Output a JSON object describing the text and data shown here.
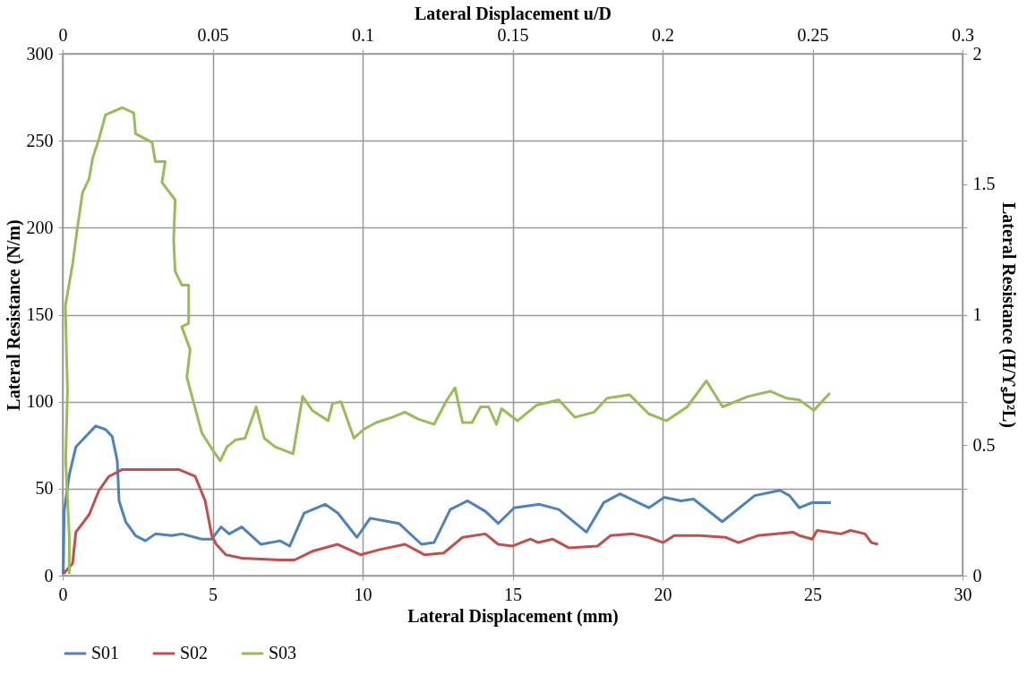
{
  "chart_data": {
    "type": "line",
    "xlabel": "Lateral Displacement (mm)",
    "ylabel": "Lateral Resistance (N/m)",
    "y2label": "Lateral Resistance (H/ϒₛD²L)",
    "x2label": "Lateral Displacement u/D",
    "xlim": [
      0,
      30
    ],
    "xticks": [
      0,
      5,
      10,
      15,
      20,
      25,
      30
    ],
    "ylim": [
      0,
      300
    ],
    "yticks": [
      0,
      50,
      100,
      150,
      200,
      250,
      300
    ],
    "x2lim": [
      0,
      0.3
    ],
    "x2ticks": [
      0,
      0.05,
      0.1,
      0.15,
      0.2,
      0.25,
      0.3
    ],
    "y2lim": [
      0,
      2
    ],
    "y2ticks": [
      0,
      {
        "value": 0.333,
        "label": null
      },
      0.5,
      {
        "value": 0.667,
        "label": null
      },
      1,
      {
        "value": 1.333,
        "label": null
      },
      1.5,
      {
        "value": 1.667,
        "label": null
      },
      2
    ],
    "grid": true,
    "legend": "bottom",
    "line_style": "solid",
    "marker": "none",
    "series": [
      {
        "name": "S01",
        "color": "#4f81bd",
        "x": [
          0.02,
          0.05,
          0.22,
          0.44,
          0.77,
          1.1,
          1.43,
          1.65,
          1.82,
          1.88,
          2.1,
          2.43,
          2.76,
          3.09,
          3.64,
          3.97,
          4.64,
          4.97,
          5.28,
          5.55,
          5.97,
          6.61,
          7.25,
          7.57,
          8.05,
          8.75,
          9.17,
          9.81,
          10.25,
          10.89,
          11.21,
          11.96,
          12.38,
          12.92,
          13.5,
          14.09,
          14.52,
          15.05,
          15.9,
          16.54,
          17.46,
          18.04,
          18.58,
          19.54,
          20.06,
          20.61,
          21.03,
          21.99,
          23.07,
          23.91,
          24.23,
          24.56,
          24.99,
          25.61
        ],
        "values": [
          1,
          37,
          58,
          74,
          80,
          86,
          84,
          80,
          66,
          43,
          31,
          23,
          20,
          24,
          23,
          24,
          21,
          21,
          28,
          24,
          28,
          18,
          20,
          17,
          36,
          41,
          36,
          22,
          33,
          31,
          30,
          18,
          19,
          38,
          43,
          37,
          30,
          39,
          41,
          38,
          25,
          42,
          47,
          39,
          45,
          43,
          44,
          31,
          46,
          49,
          46,
          39,
          42,
          42
        ]
      },
      {
        "name": "S02",
        "color": "#c0504d",
        "x": [
          0.02,
          0.33,
          0.44,
          0.88,
          1.21,
          1.54,
          1.99,
          3.09,
          3.87,
          4.42,
          4.75,
          4.97,
          5.12,
          5.44,
          5.97,
          7.25,
          7.73,
          8.32,
          9.17,
          9.93,
          10.57,
          11.41,
          12.06,
          12.7,
          13.33,
          14.09,
          14.52,
          15.0,
          15.59,
          15.86,
          16.33,
          16.87,
          17.83,
          18.26,
          19.0,
          19.54,
          20.02,
          20.39,
          21.25,
          22.1,
          22.53,
          23.17,
          24.35,
          24.56,
          24.99,
          25.15,
          25.95,
          26.27,
          26.75,
          26.96,
          27.18
        ],
        "values": [
          1,
          7,
          25,
          35,
          49,
          57,
          61,
          61,
          61,
          57,
          43,
          23,
          18,
          12,
          10,
          9,
          9,
          14,
          18,
          12,
          15,
          18,
          12,
          13,
          22,
          24,
          18,
          17,
          21,
          19,
          21,
          16,
          17,
          23,
          24,
          22,
          19,
          23,
          23,
          22,
          19,
          23,
          25,
          23,
          21,
          26,
          24,
          26,
          24,
          19,
          18
        ]
      },
      {
        "name": "S03",
        "color": "#9bbb59",
        "x": [
          0.22,
          0.22,
          0.1,
          0.16,
          0.09,
          0.33,
          0.5,
          0.66,
          0.88,
          1.0,
          1.21,
          1.43,
          1.99,
          2.37,
          2.43,
          2.98,
          3.09,
          3.42,
          3.31,
          3.75,
          3.7,
          3.75,
          3.97,
          4.2,
          4.2,
          3.97,
          4.25,
          4.14,
          4.42,
          4.64,
          4.97,
          5.25,
          5.48,
          5.76,
          6.08,
          6.45,
          6.72,
          7.08,
          7.68,
          8.0,
          8.32,
          8.85,
          9.0,
          9.28,
          9.71,
          10.03,
          10.45,
          10.99,
          11.41,
          11.85,
          12.38,
          12.81,
          13.08,
          13.33,
          13.65,
          13.93,
          14.2,
          14.46,
          14.63,
          15.16,
          15.8,
          16.54,
          17.08,
          17.72,
          18.15,
          18.9,
          19.54,
          20.13,
          20.82,
          21.46,
          22.0,
          22.85,
          23.6,
          24.13,
          24.56,
          25.04,
          25.58
        ],
        "values": [
          1,
          23,
          66,
          106,
          155,
          179,
          201,
          220,
          228,
          240,
          251,
          265,
          269,
          266,
          254,
          249,
          238,
          238,
          226,
          216,
          193,
          175,
          167,
          167,
          145,
          143,
          130,
          114,
          96,
          82,
          73,
          66,
          74,
          78,
          79,
          97,
          79,
          74,
          70,
          103,
          95,
          89,
          99,
          100,
          79,
          84,
          88,
          91,
          94,
          90,
          87,
          101,
          108,
          88,
          88,
          97,
          97,
          87,
          96,
          89,
          98,
          101,
          91,
          94,
          102,
          104,
          93,
          89,
          97,
          112,
          97,
          103,
          106,
          102,
          101,
          95,
          105
        ]
      }
    ]
  }
}
